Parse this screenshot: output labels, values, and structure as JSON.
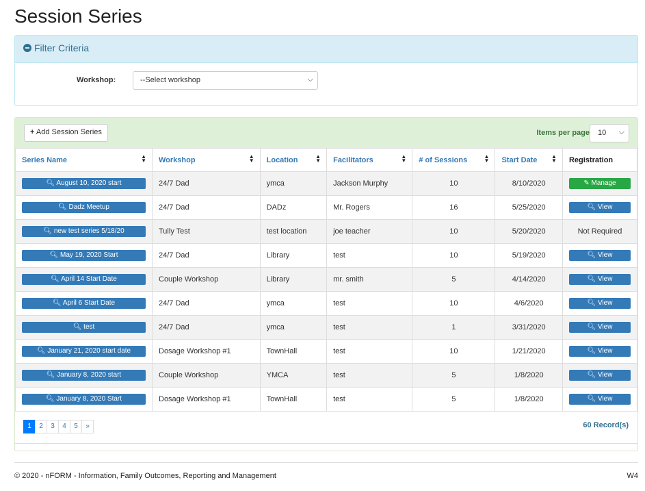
{
  "page": {
    "title": "Session Series"
  },
  "filter": {
    "title": "Filter Criteria",
    "workshop_label": "Workshop:",
    "workshop_value": "--Select workshop"
  },
  "toolbar": {
    "add_label": "Add Session Series",
    "items_per_page_label": "Items per page",
    "items_per_page": "10"
  },
  "table": {
    "headers": [
      "Series Name",
      "Workshop",
      "Location",
      "Facilitators",
      "# of Sessions",
      "Start Date",
      "Registration"
    ],
    "rows": [
      {
        "name": "August 10, 2020 start",
        "workshop": "24/7 Dad",
        "location": "ymca",
        "facilitators": "Jackson Murphy",
        "sessions": "10",
        "start": "8/10/2020",
        "registration": "Manage",
        "reg_type": "manage"
      },
      {
        "name": "Dadz Meetup",
        "workshop": "24/7 Dad",
        "location": "DADz",
        "facilitators": "Mr. Rogers",
        "sessions": "16",
        "start": "5/25/2020",
        "registration": "View",
        "reg_type": "view"
      },
      {
        "name": "new test series 5/18/20",
        "workshop": "Tully Test",
        "location": "test location",
        "facilitators": "joe teacher",
        "sessions": "10",
        "start": "5/20/2020",
        "registration": "Not Required",
        "reg_type": "text"
      },
      {
        "name": "May 19, 2020 Start",
        "workshop": "24/7 Dad",
        "location": "Library",
        "facilitators": "test",
        "sessions": "10",
        "start": "5/19/2020",
        "registration": "View",
        "reg_type": "view"
      },
      {
        "name": "April 14 Start Date",
        "workshop": "Couple Workshop",
        "location": "Library",
        "facilitators": "mr. smith",
        "sessions": "5",
        "start": "4/14/2020",
        "registration": "View",
        "reg_type": "view"
      },
      {
        "name": "April 6 Start Date",
        "workshop": "24/7 Dad",
        "location": "ymca",
        "facilitators": "test",
        "sessions": "10",
        "start": "4/6/2020",
        "registration": "View",
        "reg_type": "view"
      },
      {
        "name": "test",
        "workshop": "24/7 Dad",
        "location": "ymca",
        "facilitators": "test",
        "sessions": "1",
        "start": "3/31/2020",
        "registration": "View",
        "reg_type": "view"
      },
      {
        "name": "January 21, 2020 start date",
        "workshop": "Dosage Workshop #1",
        "location": "TownHall",
        "facilitators": "test",
        "sessions": "10",
        "start": "1/21/2020",
        "registration": "View",
        "reg_type": "view"
      },
      {
        "name": "January 8, 2020 start",
        "workshop": "Couple Workshop",
        "location": "YMCA",
        "facilitators": "test",
        "sessions": "5",
        "start": "1/8/2020",
        "registration": "View",
        "reg_type": "view"
      },
      {
        "name": "January 8, 2020 Start",
        "workshop": "Dosage Workshop #1",
        "location": "TownHall",
        "facilitators": "test",
        "sessions": "5",
        "start": "1/8/2020",
        "registration": "View",
        "reg_type": "view"
      }
    ]
  },
  "pagination": {
    "pages": [
      "1",
      "2",
      "3",
      "4",
      "5",
      "»"
    ],
    "active": "1",
    "records": "60 Record(s)"
  },
  "footer": {
    "text": "© 2020 - nFORM - Information, Family Outcomes, Reporting and Management",
    "right": "W4"
  },
  "colors": {
    "primary": "#337ab7",
    "success": "#28a745",
    "info_bg": "#d9edf7",
    "success_bg": "#dff0d8"
  }
}
